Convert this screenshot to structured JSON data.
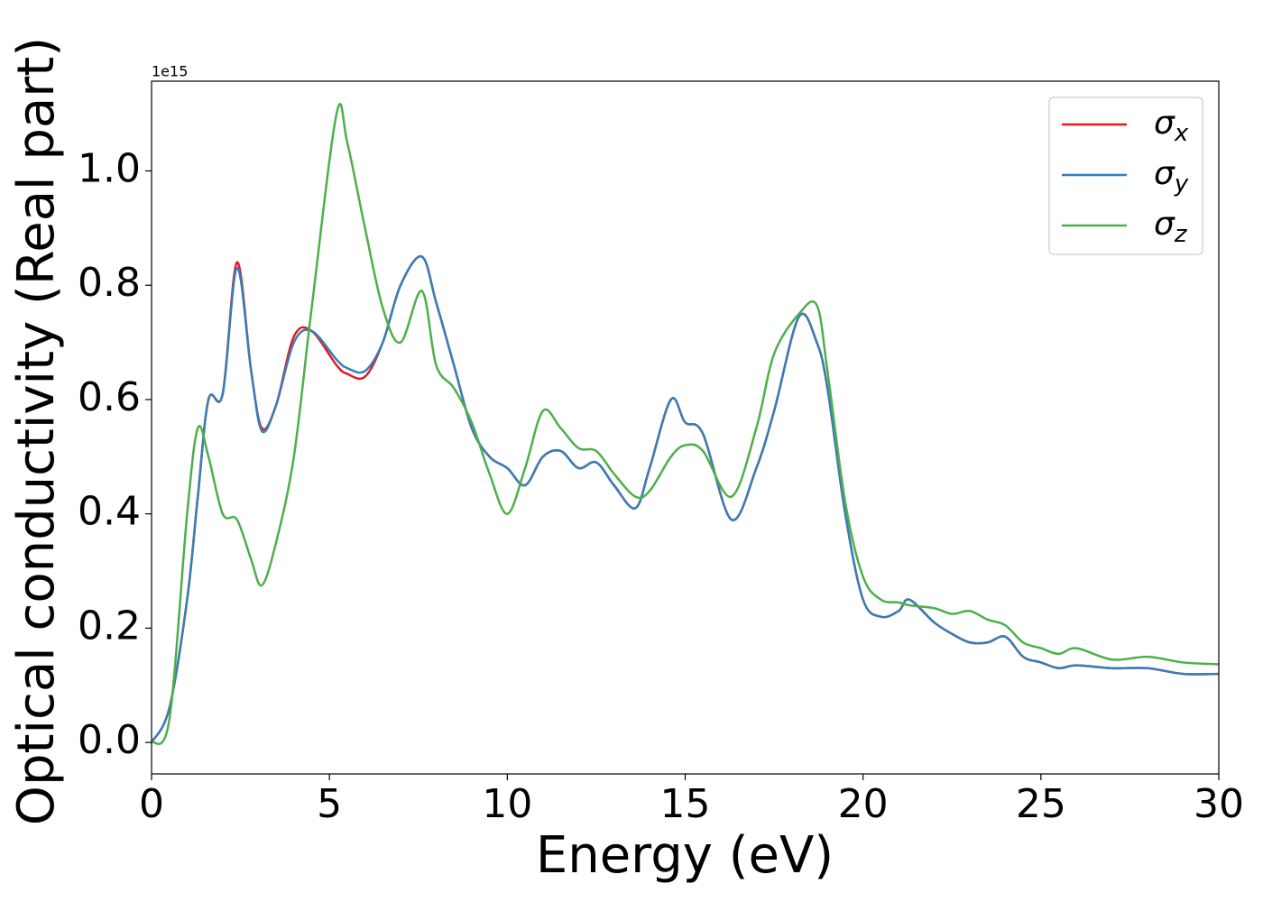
{
  "chart_data": {
    "type": "line",
    "xlabel": "Energy (eV)",
    "ylabel": "Optical conductivity (Real part)",
    "y_offset_label": "1e15",
    "x": [
      0,
      0.5,
      1,
      1.3,
      1.6,
      2,
      2.4,
      2.8,
      3.1,
      3.5,
      4,
      4.5,
      5.2,
      5.5,
      6,
      6.5,
      7,
      7.6,
      8,
      8.5,
      9,
      9.5,
      10,
      10.5,
      11,
      11.5,
      12,
      12.5,
      13,
      13.6,
      14,
      14.6,
      15,
      15.5,
      16.3,
      17,
      17.5,
      18.2,
      18.7,
      19,
      19.5,
      20,
      20.5,
      21,
      21.3,
      22,
      22.5,
      23,
      23.5,
      24,
      24.5,
      25,
      25.5,
      26,
      27,
      28,
      29,
      30
    ],
    "series": [
      {
        "name": "σx",
        "color": "#e41a1c",
        "values": [
          0,
          0.06,
          0.25,
          0.43,
          0.6,
          0.61,
          0.84,
          0.65,
          0.55,
          0.59,
          0.71,
          0.72,
          0.66,
          0.645,
          0.64,
          0.7,
          0.8,
          0.85,
          0.77,
          0.66,
          0.55,
          0.5,
          0.48,
          0.45,
          0.5,
          0.51,
          0.48,
          0.49,
          0.45,
          0.41,
          0.48,
          0.6,
          0.56,
          0.54,
          0.39,
          0.48,
          0.58,
          0.745,
          0.7,
          0.62,
          0.4,
          0.25,
          0.22,
          0.23,
          0.25,
          0.21,
          0.19,
          0.175,
          0.175,
          0.185,
          0.15,
          0.14,
          0.13,
          0.135,
          0.13,
          0.13,
          0.12,
          0.12
        ]
      },
      {
        "name": "σy",
        "color": "#377eb8",
        "values": [
          0,
          0.06,
          0.25,
          0.43,
          0.6,
          0.61,
          0.83,
          0.65,
          0.545,
          0.59,
          0.7,
          0.72,
          0.67,
          0.655,
          0.65,
          0.7,
          0.8,
          0.85,
          0.77,
          0.66,
          0.55,
          0.5,
          0.48,
          0.45,
          0.5,
          0.51,
          0.48,
          0.49,
          0.45,
          0.41,
          0.48,
          0.6,
          0.56,
          0.54,
          0.39,
          0.48,
          0.58,
          0.745,
          0.7,
          0.62,
          0.4,
          0.25,
          0.22,
          0.23,
          0.25,
          0.21,
          0.19,
          0.175,
          0.175,
          0.185,
          0.15,
          0.14,
          0.13,
          0.135,
          0.13,
          0.13,
          0.12,
          0.12
        ]
      },
      {
        "name": "σz",
        "color": "#4daf4a",
        "values": [
          0,
          0.04,
          0.4,
          0.55,
          0.5,
          0.4,
          0.39,
          0.32,
          0.275,
          0.35,
          0.5,
          0.76,
          1.1,
          1.05,
          0.9,
          0.76,
          0.7,
          0.79,
          0.66,
          0.62,
          0.56,
          0.47,
          0.4,
          0.48,
          0.58,
          0.55,
          0.515,
          0.51,
          0.47,
          0.43,
          0.44,
          0.5,
          0.52,
          0.51,
          0.43,
          0.55,
          0.68,
          0.75,
          0.765,
          0.65,
          0.42,
          0.29,
          0.25,
          0.245,
          0.24,
          0.235,
          0.225,
          0.23,
          0.215,
          0.205,
          0.175,
          0.165,
          0.155,
          0.165,
          0.145,
          0.15,
          0.14,
          0.137
        ]
      }
    ],
    "xlim": [
      0,
      30
    ],
    "xticks": [
      0,
      5,
      10,
      15,
      20,
      25,
      30
    ],
    "ylim": [
      -0.055,
      1.157
    ],
    "yticks": [
      {
        "value": 0,
        "label": "0.0"
      },
      0.2,
      0.4,
      0.6,
      0.8,
      {
        "value": 1,
        "label": "1.0"
      }
    ],
    "legend": "upper right",
    "grid": false
  }
}
